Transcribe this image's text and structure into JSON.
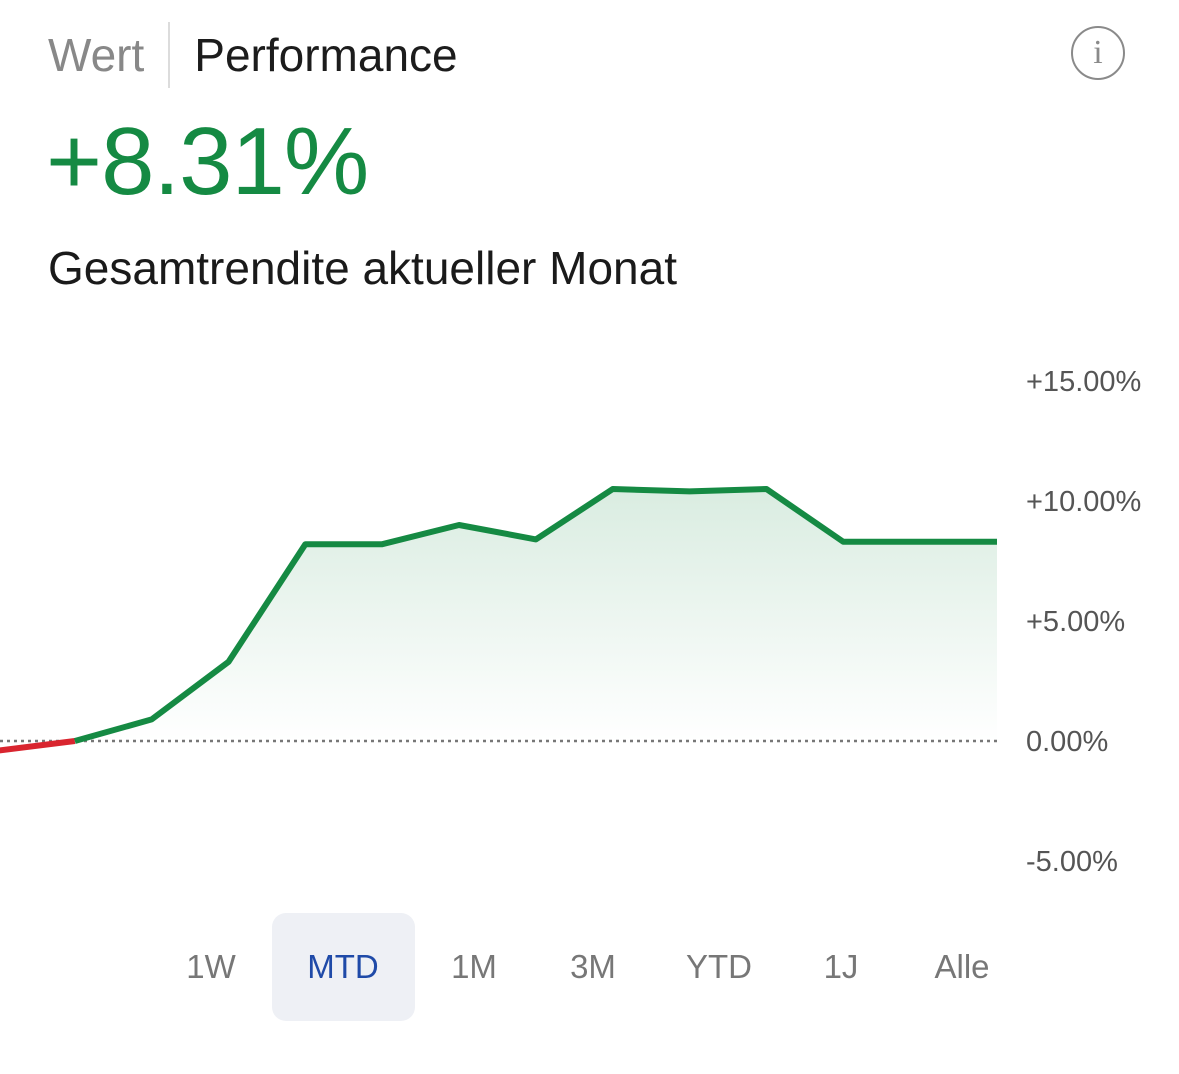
{
  "header": {
    "tabs": [
      {
        "label": "Wert",
        "active": false
      },
      {
        "label": "Performance",
        "active": true
      }
    ],
    "info_icon": "info-icon",
    "info_glyph": "i"
  },
  "summary": {
    "value": "+8.31%",
    "value_color": "#158a43",
    "caption": "Gesamtrendite aktueller Monat"
  },
  "chart_data": {
    "type": "area",
    "y_ticks": [
      "+15.00%",
      "+10.00%",
      "+5.00%",
      "0.00%",
      "-5.00%"
    ],
    "y_tick_values": [
      15,
      10,
      5,
      0,
      -5
    ],
    "ylim": [
      -5,
      15
    ],
    "baseline": 0,
    "grid": false,
    "series": [
      {
        "color": "#158a43",
        "negative_color": "#d9252f",
        "x": [
          0,
          1,
          2,
          3,
          4,
          5,
          6,
          7,
          8,
          9,
          10,
          11,
          12,
          13
        ],
        "values": [
          -0.4,
          0.0,
          0.9,
          3.3,
          8.2,
          8.2,
          9.0,
          8.4,
          10.5,
          10.4,
          10.5,
          8.3,
          8.3,
          8.3
        ]
      }
    ]
  },
  "ranges": {
    "items": [
      "1W",
      "MTD",
      "1M",
      "3M",
      "YTD",
      "1J",
      "Alle"
    ],
    "selected": "MTD",
    "selected_color": "#1f4aa8"
  }
}
